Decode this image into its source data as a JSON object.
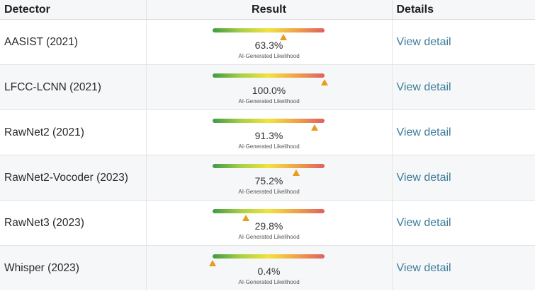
{
  "header": {
    "detector": "Detector",
    "result": "Result",
    "details": "Details"
  },
  "meter_caption": "AI-Generated Likelihood",
  "gauge_colors": [
    "#3f9a44",
    "#a8cf45",
    "#f2e23f",
    "#f0a24a",
    "#df6060"
  ],
  "marker_color": "#e89b1c",
  "link_color": "#3d7c9a",
  "rows": [
    {
      "detector": "AASIST (2021)",
      "likelihood": 63.3,
      "result": "63.3%",
      "details": "View detail"
    },
    {
      "detector": "LFCC-LCNN (2021)",
      "likelihood": 100.0,
      "result": "100.0%",
      "details": "View detail"
    },
    {
      "detector": "RawNet2 (2021)",
      "likelihood": 91.3,
      "result": "91.3%",
      "details": "View detail"
    },
    {
      "detector": "RawNet2-Vocoder (2023)",
      "likelihood": 75.2,
      "result": "75.2%",
      "details": "View detail"
    },
    {
      "detector": "RawNet3 (2023)",
      "likelihood": 29.8,
      "result": "29.8%",
      "details": "View detail"
    },
    {
      "detector": "Whisper (2023)",
      "likelihood": 0.4,
      "result": "0.4%",
      "details": "View detail"
    }
  ]
}
